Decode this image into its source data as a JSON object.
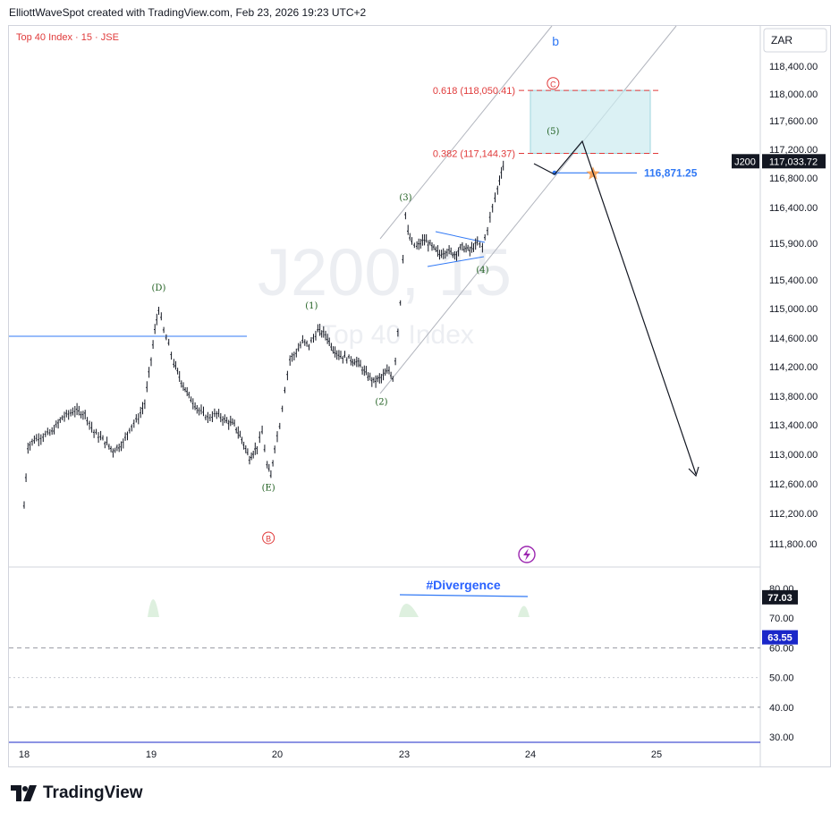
{
  "header": {
    "text": "ElliottWaveSpot created with TradingView.com, Feb 23, 2026 19:23 UTC+2"
  },
  "footer": {
    "brand": "TradingView"
  },
  "colors": {
    "price_bars": "#131722",
    "rsi_ma": "#1a27c9",
    "fib": "#e03a3a",
    "target_zone": "#ccebef",
    "support": "#3179f5",
    "waves": "#1e5e1e",
    "wave_letters": "#3179f5",
    "star": "#f5a35c"
  },
  "chart_data": {
    "type": "line",
    "title": "Top 40 Index · 15 · JSE",
    "symbol": "J200",
    "watermark": {
      "symbol": "J200, 15",
      "name": "Top 40 Index"
    },
    "currency": "ZAR",
    "x_ticks": [
      "18",
      "19",
      "20",
      "23",
      "24",
      "25"
    ],
    "price_axis": {
      "ticks": [
        "118,400.00",
        "118,000.00",
        "117,600.00",
        "117,200.00",
        "116,800.00",
        "116,400.00",
        "115,900.00",
        "115,400.00",
        "115,000.00",
        "114,600.00",
        "114,200.00",
        "113,800.00",
        "113,400.00",
        "113,000.00",
        "112,600.00",
        "112,200.00",
        "111,800.00"
      ],
      "range": [
        111650,
        118800
      ]
    },
    "last_price": {
      "symbol": "J200",
      "value": "117,033.72"
    },
    "price_path": [
      [
        17.95,
        111950
      ],
      [
        18.0,
        112300
      ],
      [
        18.03,
        113100
      ],
      [
        18.08,
        113200
      ],
      [
        18.15,
        113250
      ],
      [
        18.22,
        113300
      ],
      [
        18.3,
        113500
      ],
      [
        18.4,
        113600
      ],
      [
        18.48,
        113550
      ],
      [
        18.55,
        113300
      ],
      [
        18.62,
        113200
      ],
      [
        18.7,
        113050
      ],
      [
        18.78,
        113150
      ],
      [
        18.83,
        113350
      ],
      [
        18.9,
        113500
      ],
      [
        18.95,
        113700
      ],
      [
        19.0,
        114300
      ],
      [
        19.03,
        114700
      ],
      [
        19.06,
        115000
      ],
      [
        19.1,
        114700
      ],
      [
        19.14,
        114500
      ],
      [
        19.18,
        114250
      ],
      [
        19.24,
        114000
      ],
      [
        19.3,
        113800
      ],
      [
        19.38,
        113600
      ],
      [
        19.45,
        113500
      ],
      [
        19.52,
        113550
      ],
      [
        19.6,
        113450
      ],
      [
        19.66,
        113400
      ],
      [
        19.72,
        113200
      ],
      [
        19.78,
        112950
      ],
      [
        19.84,
        113100
      ],
      [
        19.88,
        113300
      ],
      [
        19.92,
        112850
      ],
      [
        19.95,
        112700
      ],
      [
        19.98,
        113100
      ],
      [
        20.02,
        113400
      ],
      [
        20.06,
        113900
      ],
      [
        20.1,
        114300
      ],
      [
        20.15,
        114400
      ],
      [
        20.2,
        114550
      ],
      [
        20.25,
        114500
      ],
      [
        20.32,
        114700
      ],
      [
        20.38,
        114650
      ],
      [
        20.44,
        114450
      ],
      [
        20.5,
        114350
      ],
      [
        20.58,
        114300
      ],
      [
        20.64,
        114250
      ],
      [
        20.7,
        114100
      ],
      [
        20.76,
        114000
      ],
      [
        20.82,
        114050
      ],
      [
        20.88,
        114150
      ],
      [
        20.91,
        114050
      ],
      [
        20.93,
        114300
      ],
      [
        20.95,
        114700
      ],
      [
        20.97,
        115100
      ],
      [
        20.99,
        115700
      ],
      [
        21.01,
        116300
      ],
      [
        21.03,
        116050
      ],
      [
        21.06,
        115900
      ],
      [
        21.1,
        115850
      ],
      [
        21.16,
        115950
      ],
      [
        21.22,
        115850
      ],
      [
        21.28,
        115750
      ],
      [
        21.34,
        115800
      ],
      [
        21.4,
        115750
      ],
      [
        21.46,
        115850
      ],
      [
        21.52,
        115800
      ],
      [
        21.58,
        115900
      ],
      [
        21.62,
        115850
      ],
      [
        21.66,
        116100
      ],
      [
        21.7,
        116400
      ],
      [
        21.74,
        116650
      ],
      [
        21.77,
        116900
      ],
      [
        21.8,
        117033
      ]
    ],
    "wave_labels": [
      {
        "text": "(D)",
        "x": 19.06,
        "y": 115250
      },
      {
        "text": "(E)",
        "x": 19.93,
        "y": 112510
      },
      {
        "text": "(1)",
        "x": 20.27,
        "y": 115000
      },
      {
        "text": "(2)",
        "x": 20.82,
        "y": 113680
      },
      {
        "text": "(3)",
        "x": 21.01,
        "y": 116500
      },
      {
        "text": "(4)",
        "x": 21.62,
        "y": 115500
      },
      {
        "text": "(5)",
        "x": 22.18,
        "y": 117410
      }
    ],
    "degree_labels": [
      {
        "text": "b",
        "x": 22.2,
        "y": 118700
      },
      {
        "text": "C",
        "x": 22.18,
        "y": 118100
      },
      {
        "text": "B",
        "x": 19.93,
        "y": 111830
      }
    ],
    "fib_levels": [
      {
        "label": "0.618 (118,050.41)",
        "value": 118050.41
      },
      {
        "label": "0.382 (117,144.37)",
        "value": 117144.37
      }
    ],
    "support_level": {
      "label": "116,871.25",
      "value": 116871.25
    },
    "annotations": [
      "#Divergence"
    ],
    "rsi": {
      "ticks": [
        "80.00",
        "70.00",
        "60.00",
        "50.00",
        "40.00",
        "30.00"
      ],
      "range": [
        29,
        83
      ],
      "last_value": "77.03",
      "ma_value": "63.55",
      "rsi_path": [
        [
          17.95,
          46
        ],
        [
          18.0,
          44
        ],
        [
          18.05,
          65
        ],
        [
          18.12,
          70
        ],
        [
          18.2,
          71
        ],
        [
          18.28,
          70
        ],
        [
          18.36,
          66
        ],
        [
          18.45,
          60
        ],
        [
          18.52,
          55
        ],
        [
          18.58,
          52
        ],
        [
          18.65,
          48
        ],
        [
          18.72,
          56
        ],
        [
          18.8,
          62
        ],
        [
          18.88,
          68
        ],
        [
          18.95,
          72
        ],
        [
          19.02,
          80
        ],
        [
          19.07,
          77
        ],
        [
          19.12,
          64
        ],
        [
          19.18,
          57
        ],
        [
          19.24,
          52
        ],
        [
          19.3,
          48
        ],
        [
          19.38,
          46
        ],
        [
          19.46,
          44
        ],
        [
          19.54,
          45
        ],
        [
          19.62,
          43
        ],
        [
          19.7,
          40
        ],
        [
          19.76,
          36
        ],
        [
          19.8,
          42
        ],
        [
          19.84,
          40
        ],
        [
          19.88,
          38
        ],
        [
          19.92,
          43
        ],
        [
          19.96,
          46
        ],
        [
          20.0,
          59
        ],
        [
          20.06,
          66
        ],
        [
          20.12,
          68
        ],
        [
          20.18,
          65
        ],
        [
          20.24,
          67
        ],
        [
          20.3,
          64
        ],
        [
          20.36,
          60
        ],
        [
          20.44,
          58
        ],
        [
          20.52,
          56
        ],
        [
          20.6,
          52
        ],
        [
          20.68,
          49
        ],
        [
          20.75,
          50
        ],
        [
          20.82,
          51
        ],
        [
          20.86,
          55
        ],
        [
          20.9,
          53
        ],
        [
          20.94,
          63
        ],
        [
          20.98,
          73
        ],
        [
          21.02,
          76
        ],
        [
          21.06,
          73
        ],
        [
          21.12,
          71
        ],
        [
          21.18,
          68
        ],
        [
          21.24,
          66
        ],
        [
          21.3,
          62
        ],
        [
          21.36,
          61
        ],
        [
          21.44,
          61
        ],
        [
          21.52,
          59
        ],
        [
          21.58,
          57
        ],
        [
          21.64,
          58
        ],
        [
          21.7,
          59
        ],
        [
          21.74,
          62
        ],
        [
          21.78,
          70
        ],
        [
          21.82,
          77
        ]
      ],
      "ma_path": [
        [
          17.95,
          38
        ],
        [
          18.05,
          42
        ],
        [
          18.15,
          52
        ],
        [
          18.25,
          62
        ],
        [
          18.35,
          68
        ],
        [
          18.45,
          66
        ],
        [
          18.55,
          61
        ],
        [
          18.65,
          57
        ],
        [
          18.75,
          58
        ],
        [
          18.85,
          63
        ],
        [
          18.95,
          67
        ],
        [
          19.05,
          69
        ],
        [
          19.15,
          66
        ],
        [
          19.25,
          60
        ],
        [
          19.35,
          53
        ],
        [
          19.45,
          48
        ],
        [
          19.55,
          45
        ],
        [
          19.65,
          44
        ],
        [
          19.75,
          43
        ],
        [
          19.85,
          41
        ],
        [
          19.95,
          42
        ],
        [
          20.05,
          47
        ],
        [
          20.15,
          53
        ],
        [
          20.25,
          59
        ],
        [
          20.35,
          62
        ],
        [
          20.45,
          61
        ],
        [
          20.55,
          58
        ],
        [
          20.65,
          55
        ],
        [
          20.75,
          52
        ],
        [
          20.85,
          51
        ],
        [
          20.95,
          56
        ],
        [
          21.05,
          63
        ],
        [
          21.15,
          69
        ],
        [
          21.22,
          71
        ],
        [
          21.3,
          69
        ],
        [
          21.4,
          66
        ],
        [
          21.5,
          63
        ],
        [
          21.58,
          61
        ],
        [
          21.66,
          60
        ],
        [
          21.74,
          61
        ],
        [
          21.82,
          63
        ]
      ],
      "ref_levels": [
        60,
        50,
        40
      ]
    }
  }
}
